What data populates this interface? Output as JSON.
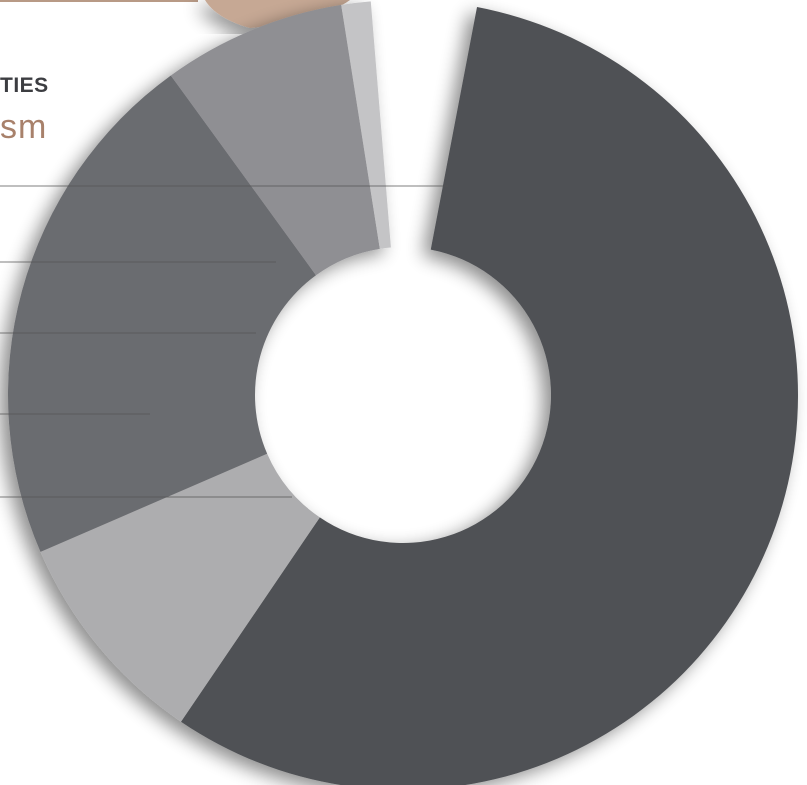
{
  "heading": "TIES",
  "subheading": "sm",
  "colors": {
    "accent_copper": "#c6a894",
    "accent_copper_dark": "#a8816b",
    "heading_text": "#3c3d41",
    "leader_line": "#555555"
  },
  "chart_data": {
    "type": "pie",
    "variant": "donut",
    "title": "",
    "slices": [
      {
        "value": 56.5,
        "color": "#4f5155"
      },
      {
        "value": 9.0,
        "color": "#adadaf"
      },
      {
        "value": 21.5,
        "color": "#6b6c70"
      },
      {
        "value": 7.5,
        "color": "#8f8f93"
      },
      {
        "value": 1.2,
        "color": "#c4c4c6"
      }
    ],
    "legend": "none",
    "gap_after_last_slice": true
  }
}
